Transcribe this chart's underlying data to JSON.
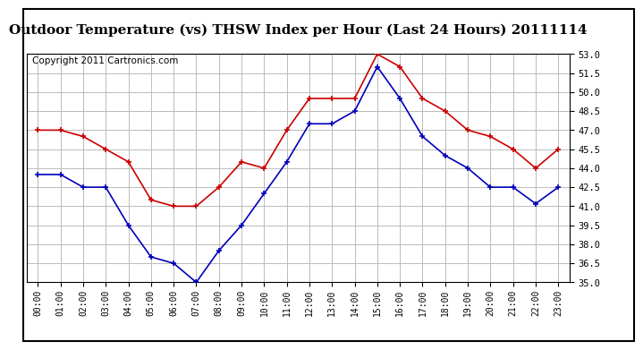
{
  "title": "Outdoor Temperature (vs) THSW Index per Hour (Last 24 Hours) 20111114",
  "copyright": "Copyright 2011 Cartronics.com",
  "hours": [
    "00:00",
    "01:00",
    "02:00",
    "03:00",
    "04:00",
    "05:00",
    "06:00",
    "07:00",
    "08:00",
    "09:00",
    "10:00",
    "11:00",
    "12:00",
    "13:00",
    "14:00",
    "15:00",
    "16:00",
    "17:00",
    "18:00",
    "19:00",
    "20:00",
    "21:00",
    "22:00",
    "23:00"
  ],
  "temp_blue": [
    43.5,
    43.5,
    42.5,
    42.5,
    39.5,
    37.0,
    36.5,
    35.0,
    37.5,
    39.5,
    42.0,
    44.5,
    47.5,
    47.5,
    48.5,
    52.0,
    49.5,
    46.5,
    45.0,
    44.0,
    42.5,
    42.5,
    41.2,
    42.5
  ],
  "thsw_red": [
    47.0,
    47.0,
    46.5,
    45.5,
    44.5,
    41.5,
    41.0,
    41.0,
    42.5,
    44.5,
    44.0,
    47.0,
    49.5,
    49.5,
    49.5,
    53.0,
    52.0,
    49.5,
    48.5,
    47.0,
    46.5,
    45.5,
    44.0,
    45.5
  ],
  "ylim_min": 35.0,
  "ylim_max": 53.0,
  "yticks": [
    35.0,
    36.5,
    38.0,
    39.5,
    41.0,
    42.5,
    44.0,
    45.5,
    47.0,
    48.5,
    50.0,
    51.5,
    53.0
  ],
  "blue_color": "#0000bb",
  "red_color": "#cc0000",
  "grid_color": "#bbbbbb",
  "bg_color": "#ffffff",
  "title_fontsize": 11,
  "copyright_fontsize": 7.5
}
